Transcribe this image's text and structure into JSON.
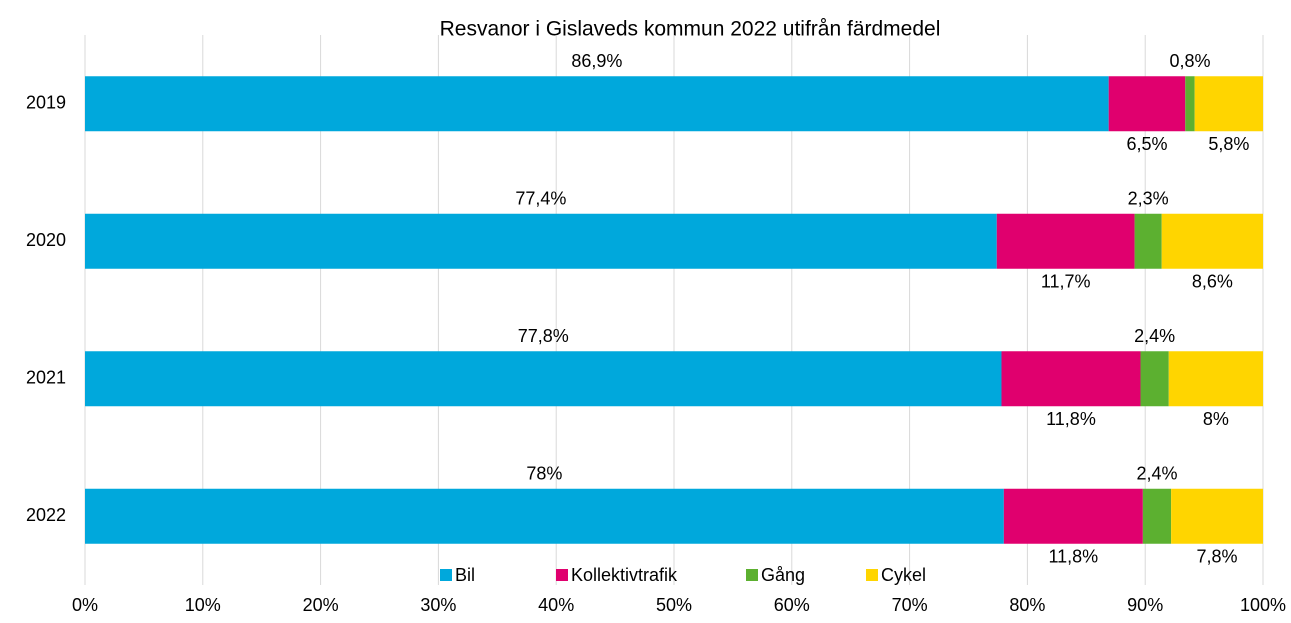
{
  "chart_data": {
    "type": "stacked-barh",
    "title": "Resvanor i Gislaveds kommun 2022 utifrån färdmedel",
    "categories": [
      "2019",
      "2020",
      "2021",
      "2022"
    ],
    "series": [
      {
        "name": "Bil",
        "color": "#00a8dc",
        "values": [
          86.9,
          77.4,
          77.8,
          78
        ],
        "value_labels": [
          "86,9%",
          "77,4%",
          "77,8%",
          "78%"
        ]
      },
      {
        "name": "Kollektivtrafik",
        "color": "#e0006e",
        "values": [
          6.5,
          11.7,
          11.8,
          11.8
        ],
        "value_labels": [
          "6,5%",
          "11,7%",
          "11,8%",
          "11,8%"
        ]
      },
      {
        "name": "Gång",
        "color": "#5cb030",
        "values": [
          0.8,
          2.3,
          2.4,
          2.4
        ],
        "value_labels": [
          "0,8%",
          "2,3%",
          "2,4%",
          "2,4%"
        ]
      },
      {
        "name": "Cykel",
        "color": "#ffd500",
        "values": [
          5.8,
          8.6,
          8,
          7.8
        ],
        "value_labels": [
          "5,8%",
          "8,6%",
          "8%",
          "7,8%"
        ]
      }
    ],
    "xlim": [
      0,
      100
    ],
    "xticks": [
      {
        "value": 0,
        "label": "0%"
      },
      {
        "value": 10,
        "label": "10%"
      },
      {
        "value": 20,
        "label": "20%"
      },
      {
        "value": 30,
        "label": "30%"
      },
      {
        "value": 40,
        "label": "40%"
      },
      {
        "value": 50,
        "label": "50%"
      },
      {
        "value": 60,
        "label": "60%"
      },
      {
        "value": 70,
        "label": "70%"
      },
      {
        "value": 80,
        "label": "80%"
      },
      {
        "value": 90,
        "label": "90%"
      },
      {
        "value": 100,
        "label": "100%"
      }
    ],
    "grid": true,
    "legend": "bottom"
  }
}
